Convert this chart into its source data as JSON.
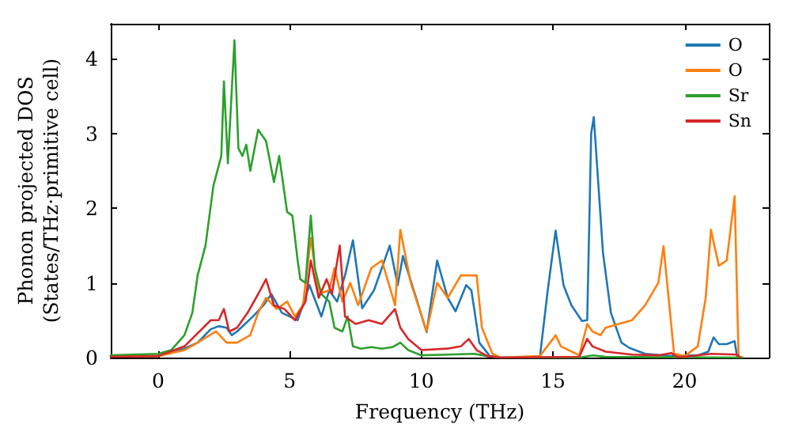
{
  "chart_data": {
    "type": "line",
    "xlabel": "Frequency (THz)",
    "ylabel": "Phonon projected DOS\n(States/THz·primitive cell)",
    "xlim": [
      -1.8,
      23.2
    ],
    "ylim": [
      0,
      4.47
    ],
    "xticks": [
      0,
      5,
      10,
      15,
      20
    ],
    "yticks": [
      0,
      1,
      2,
      3,
      4
    ],
    "grid": false,
    "legend": "top right",
    "marker": "none",
    "line_style": "solid",
    "series": [
      {
        "name": "O",
        "color": "#1f77b4",
        "x": [
          -1.8,
          0,
          1,
          1.5,
          2,
          2.3,
          2.6,
          2.8,
          3,
          3.3,
          3.6,
          4,
          4.3,
          4.7,
          5,
          5.3,
          5.75,
          6.2,
          6.5,
          6.8,
          7.1,
          7.4,
          7.75,
          8.2,
          8.8,
          9.1,
          9.3,
          9.8,
          10.2,
          10.6,
          11,
          11.3,
          11.7,
          11.9,
          12.2,
          12.6,
          13,
          14.5,
          14.8,
          15.1,
          15.4,
          15.7,
          16.1,
          16.3,
          16.45,
          16.55,
          16.9,
          17.2,
          17.6,
          17.9,
          18.5,
          19.5,
          20.5,
          20.9,
          21.1,
          21.3,
          21.6,
          21.9,
          22,
          22.2
        ],
        "values": [
          0.02,
          0.02,
          0.12,
          0.2,
          0.38,
          0.42,
          0.4,
          0.3,
          0.35,
          0.45,
          0.55,
          0.7,
          0.85,
          0.6,
          0.55,
          0.5,
          0.97,
          0.55,
          0.9,
          0.75,
          1.1,
          1.57,
          0.66,
          0.9,
          1.5,
          0.97,
          1.36,
          0.8,
          0.34,
          1.3,
          0.8,
          0.62,
          0.97,
          0.9,
          0.2,
          0.02,
          0,
          0,
          0.9,
          1.7,
          0.97,
          0.7,
          0.49,
          0.5,
          3.0,
          3.22,
          1.4,
          0.6,
          0.2,
          0.13,
          0.05,
          0.02,
          0.03,
          0.08,
          0.27,
          0.18,
          0.18,
          0.22,
          0,
          0
        ]
      },
      {
        "name": "O",
        "color": "#ff7f0e",
        "x": [
          -1.8,
          0,
          1,
          1.5,
          2.2,
          2.6,
          3,
          3.5,
          3.8,
          4.1,
          4.5,
          4.9,
          5.2,
          5.5,
          5.8,
          6.1,
          6.5,
          6.7,
          7,
          7.3,
          7.6,
          8.1,
          8.5,
          9,
          9.2,
          9.6,
          10.2,
          10.6,
          11,
          11.5,
          12.1,
          12.3,
          12.7,
          13,
          14.5,
          15,
          15.1,
          15.3,
          16,
          16.3,
          16.5,
          16.8,
          17,
          17.5,
          18,
          18.5,
          19,
          19.2,
          19.6,
          20,
          20.5,
          20.8,
          21,
          21.3,
          21.6,
          21.9,
          22.05,
          22.2
        ],
        "values": [
          0.02,
          0.02,
          0.1,
          0.2,
          0.35,
          0.2,
          0.2,
          0.3,
          0.6,
          0.8,
          0.65,
          0.75,
          0.55,
          0.7,
          1.6,
          0.85,
          0.9,
          1.2,
          0.75,
          1.0,
          0.7,
          1.2,
          1.3,
          0.7,
          1.71,
          1.0,
          0.35,
          1.0,
          0.8,
          1.1,
          1.1,
          0.4,
          0.05,
          0,
          0.02,
          0.25,
          0.3,
          0.15,
          0.03,
          0.45,
          0.35,
          0.3,
          0.4,
          0.45,
          0.5,
          0.7,
          1.0,
          1.49,
          0.05,
          0.02,
          0.15,
          0.8,
          1.71,
          1.23,
          1.3,
          2.16,
          0.02,
          0
        ]
      },
      {
        "name": "Sr",
        "color": "#2ca02c",
        "x": [
          -1.8,
          0,
          0.5,
          1,
          1.3,
          1.5,
          1.8,
          2.1,
          2.4,
          2.5,
          2.65,
          2.9,
          3.05,
          3.2,
          3.35,
          3.5,
          3.8,
          4.1,
          4.4,
          4.6,
          4.9,
          5.1,
          5.3,
          5.4,
          5.6,
          5.8,
          5.95,
          6.2,
          6.5,
          6.7,
          7,
          7.2,
          7.4,
          7.7,
          8.1,
          8.5,
          8.9,
          9.2,
          9.5,
          10,
          11,
          12,
          12.5,
          13,
          16,
          16.5,
          17,
          22.2
        ],
        "values": [
          0.03,
          0.05,
          0.1,
          0.3,
          0.6,
          1.1,
          1.5,
          2.3,
          2.7,
          3.7,
          2.6,
          4.25,
          2.8,
          2.7,
          2.85,
          2.5,
          3.05,
          2.9,
          2.35,
          2.7,
          1.95,
          1.9,
          1.3,
          1.05,
          1.0,
          1.9,
          1.2,
          0.85,
          0.75,
          0.4,
          0.35,
          0.55,
          0.15,
          0.12,
          0.14,
          0.12,
          0.14,
          0.2,
          0.1,
          0.03,
          0.04,
          0.05,
          0.02,
          0,
          0,
          0.03,
          0.01,
          0
        ]
      },
      {
        "name": "Sn",
        "color": "#d62728",
        "x": [
          -1.8,
          0,
          1,
          2,
          2.3,
          2.5,
          2.7,
          3,
          3.4,
          3.8,
          4.1,
          4.4,
          4.8,
          5.2,
          5.6,
          5.8,
          6.1,
          6.4,
          6.6,
          6.9,
          7.1,
          7.5,
          8,
          8.5,
          9,
          9.2,
          9.5,
          10,
          11,
          11.5,
          11.8,
          12.1,
          12.5,
          13,
          16,
          16.3,
          16.5,
          17,
          18,
          19,
          19.5,
          19.7,
          20,
          21,
          22,
          22.1
        ],
        "values": [
          0.01,
          0.02,
          0.15,
          0.5,
          0.5,
          0.65,
          0.35,
          0.4,
          0.6,
          0.85,
          1.05,
          0.7,
          0.65,
          0.5,
          0.75,
          1.3,
          0.8,
          1.05,
          0.85,
          1.5,
          0.55,
          0.45,
          0.5,
          0.45,
          0.65,
          0.4,
          0.25,
          0.1,
          0.12,
          0.15,
          0.25,
          0.1,
          0.02,
          0,
          0.01,
          0.25,
          0.15,
          0.08,
          0.04,
          0.03,
          0.06,
          0.01,
          0.01,
          0.05,
          0.04,
          0
        ]
      }
    ]
  }
}
